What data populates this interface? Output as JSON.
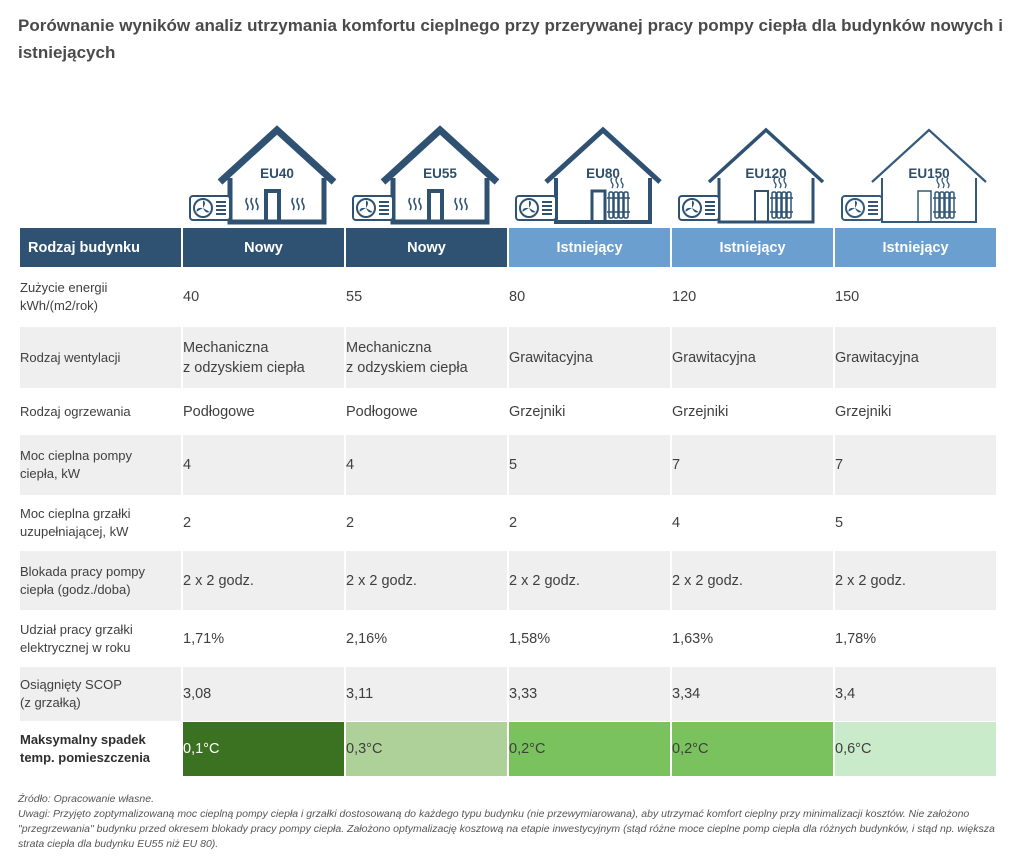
{
  "title": "Porównanie wyników analiz utrzymania komfortu cieplnego przy przerywanej pracy pompy ciepła dla budynków nowych i istniejących",
  "colors": {
    "header_new": "#2f5273",
    "header_existing": "#6a9fd0",
    "row_gray": "#efefef",
    "drop_colors": [
      "#3b7221",
      "#aed099",
      "#79c25e",
      "#79c25e",
      "#c9ebc9"
    ]
  },
  "header_label": "Rodzaj budynku",
  "buildings": [
    {
      "code": "EU40",
      "type": "Nowy",
      "heat": "floor",
      "shade": "dark"
    },
    {
      "code": "EU55",
      "type": "Nowy",
      "heat": "floor",
      "shade": "dark"
    },
    {
      "code": "EU80",
      "type": "Istniejący",
      "heat": "radiator",
      "shade": "mid"
    },
    {
      "code": "EU120",
      "type": "Istniejący",
      "heat": "radiator",
      "shade": "light"
    },
    {
      "code": "EU150",
      "type": "Istniejący",
      "heat": "radiator",
      "shade": "lighter"
    }
  ],
  "rows": [
    {
      "label": [
        "Zużycie energii",
        "kWh/(m2/rok)"
      ],
      "values": [
        "40",
        "55",
        "80",
        "120",
        "150"
      ]
    },
    {
      "label": [
        "Rodzaj wentylacji"
      ],
      "values": [
        [
          "Mechaniczna",
          "z odzyskiem ciepła"
        ],
        [
          "Mechaniczna",
          "z odzyskiem ciepła"
        ],
        "Grawitacyjna",
        "Grawitacyjna",
        "Grawitacyjna"
      ]
    },
    {
      "label": [
        "Rodzaj ogrzewania"
      ],
      "values": [
        "Podłogowe",
        "Podłogowe",
        "Grzejniki",
        "Grzejniki",
        "Grzejniki"
      ]
    },
    {
      "label": [
        "Moc cieplna pompy",
        "ciepła, kW"
      ],
      "values": [
        "4",
        "4",
        "5",
        "7",
        "7"
      ]
    },
    {
      "label": [
        "Moc cieplna grzałki",
        "uzupełniającej, kW"
      ],
      "values": [
        "2",
        "2",
        "2",
        "4",
        "5"
      ]
    },
    {
      "label": [
        "Blokada pracy pompy",
        "ciepła (godz./doba)"
      ],
      "values": [
        "2 x 2 godz.",
        "2 x 2 godz.",
        "2 x 2 godz.",
        "2 x 2 godz.",
        "2 x 2 godz."
      ]
    },
    {
      "label": [
        "Udział pracy grzałki",
        "elektrycznej w roku"
      ],
      "values": [
        "1,71%",
        "2,16%",
        "1,58%",
        "1,63%",
        "1,78%"
      ]
    },
    {
      "label": [
        "Osiągnięty SCOP",
        "(z grzałką)"
      ],
      "values": [
        "3,08",
        "3,11",
        "3,33",
        "3,34",
        "3,4"
      ]
    },
    {
      "label": [
        "Maksymalny spadek",
        "temp. pomieszczenia"
      ],
      "values": [
        "0,1°C",
        "0,3°C",
        "0,2°C",
        "0,2°C",
        "0,6°C"
      ]
    }
  ],
  "footer": {
    "source": "Źródło: Opracowanie własne.",
    "note": "Uwagi: Przyjęto zoptymalizowaną moc cieplną pompy ciepła i grzałki dostosowaną do każdego typu budynku (nie przewymiarowana), aby utrzymać komfort cieplny przy minimalizacji kosztów. Nie założono \"przegrzewania\" budynku przed okresem blokady pracy pompy ciepła. Założono optymalizację kosztową na etapie inwestycyjnym (stąd różne moce cieplne pomp ciepła dla różnych budynków, i stąd np. większa strata ciepła dla budynku EU55 niż EU 80)."
  },
  "icon_names": [
    "house-icon",
    "heat-pump-icon",
    "fan-icon",
    "floor-heating-icon",
    "radiator-icon"
  ]
}
